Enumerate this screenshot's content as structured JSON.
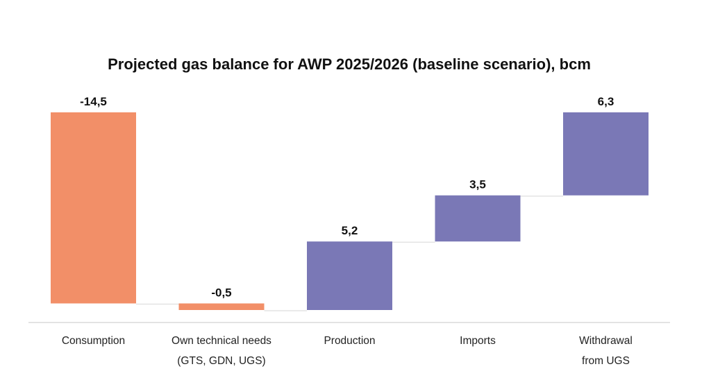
{
  "chart_data": {
    "type": "bar",
    "subtype": "waterfall",
    "title": "Projected gas balance for AWP 2025/2026 (baseline scenario), bcm",
    "xlabel": "",
    "ylabel": "",
    "grid": false,
    "legend": "none",
    "categories": [
      [
        "Consumption"
      ],
      [
        "Own technical needs",
        "(GTS, GDN, UGS)"
      ],
      [
        "Production"
      ],
      [
        "Imports"
      ],
      [
        "Withdrawal",
        "from UGS"
      ]
    ],
    "values": [
      -14.5,
      -0.5,
      5.2,
      3.5,
      6.3
    ],
    "data_labels": [
      "-14,5",
      "-0,5",
      "5,2",
      "3,5",
      "6,3"
    ],
    "colors": {
      "negative": "#F28F68",
      "positive": "#7A78B6",
      "connector": "#E3E3E3",
      "baseline": "#E3E3E3"
    },
    "ylim": [
      -15,
      0
    ]
  }
}
